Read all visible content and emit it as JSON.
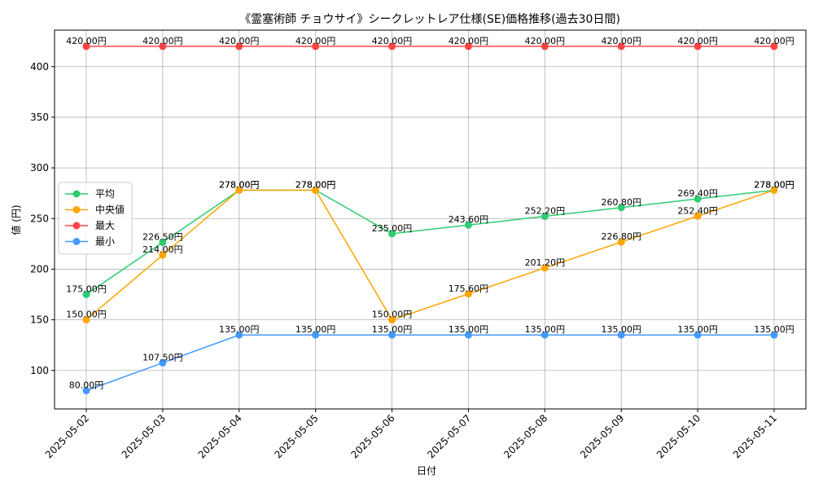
{
  "chart_data": {
    "type": "line",
    "title": "《霊塞術師 チョウサイ》シークレットレア仕様(SE)価格推移(過去30日間)",
    "xlabel": "日付",
    "ylabel": "値 (円)",
    "categories": [
      "2025-05-02",
      "2025-05-03",
      "2025-05-04",
      "2025-05-05",
      "2025-05-06",
      "2025-05-07",
      "2025-05-08",
      "2025-05-09",
      "2025-05-10",
      "2025-05-11"
    ],
    "ylim": [
      62,
      436
    ],
    "yticks": [
      100,
      150,
      200,
      250,
      300,
      350,
      400
    ],
    "grid": true,
    "legend_position": "center-left",
    "series": [
      {
        "name": "平均",
        "color": "#2ecc71",
        "values": [
          175.0,
          226.5,
          278.0,
          278.0,
          235.0,
          243.6,
          252.2,
          260.8,
          269.4,
          278.0
        ],
        "labels": [
          "175.00円",
          "226.50円",
          "278.00円",
          "278.00円",
          "235.00円",
          "243.60円",
          "252.20円",
          "260.80円",
          "269.40円",
          "278.00円"
        ]
      },
      {
        "name": "中央値",
        "color": "#ffa500",
        "values": [
          150.0,
          214.0,
          278.0,
          278.0,
          150.0,
          175.6,
          201.2,
          226.8,
          252.4,
          278.0
        ],
        "labels": [
          "150.00円",
          "214.00円",
          "278.00円",
          "278.00円",
          "150.00円",
          "175.60円",
          "201.20円",
          "226.80円",
          "252.40円",
          "278.00円"
        ]
      },
      {
        "name": "最大",
        "color": "#ff4444",
        "values": [
          420.0,
          420.0,
          420.0,
          420.0,
          420.0,
          420.0,
          420.0,
          420.0,
          420.0,
          420.0
        ],
        "labels": [
          "420.00円",
          "420.00円",
          "420.00円",
          "420.00円",
          "420.00円",
          "420.00円",
          "420.00円",
          "420.00円",
          "420.00円",
          "420.00円"
        ]
      },
      {
        "name": "最小",
        "color": "#4499ff",
        "values": [
          80.0,
          107.5,
          135.0,
          135.0,
          135.0,
          135.0,
          135.0,
          135.0,
          135.0,
          135.0
        ],
        "labels": [
          "80.00円",
          "107.50円",
          "135.00円",
          "135.00円",
          "135.00円",
          "135.00円",
          "135.00円",
          "135.00円",
          "135.00円",
          "135.00円"
        ]
      }
    ]
  }
}
